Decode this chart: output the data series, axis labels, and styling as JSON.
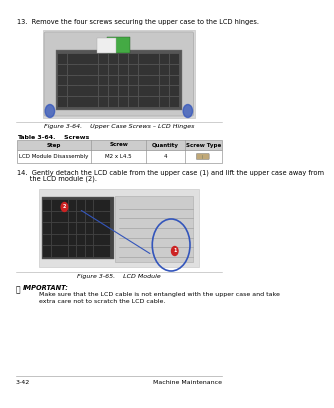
{
  "page_number": "3-42",
  "header_right": "Machine Maintenance",
  "step13_text": "13.  Remove the four screws securing the upper case to the LCD hinges.",
  "fig364_caption": "Figure 3-64.    Upper Case Screws – LCD Hinges",
  "table_title": "Table 3-64.    Screws",
  "table_headers": [
    "Step",
    "Screw",
    "Quantity",
    "Screw Type"
  ],
  "table_row": [
    "LCD Module Disassembly",
    "M2 x L4.5",
    "4",
    ""
  ],
  "step14_line1": "14.  Gently detach the LCD cable from the upper case (1) and lift the upper case away from",
  "step14_line2": "      the LCD module (2).",
  "fig365_caption": "Figure 3-65.    LCD Module",
  "important_bullet": "⬧",
  "important_label": "IMPORTANT:",
  "important_text1": "Make sure that the LCD cable is not entangled with the upper case and take",
  "important_text2": "extra care not to scratch the LCD cable.",
  "bg_color": "#ffffff",
  "text_color": "#000000",
  "gray_text": "#555555",
  "table_header_bg": "#cccccc",
  "table_border_color": "#999999",
  "footer_line_color": "#aaaaaa",
  "fig_line_color": "#aaaaaa",
  "img_border_color": "#cccccc",
  "img_bg_color": "#e8e8e8",
  "blue_circle_color": "#3355bb",
  "red_circle_color": "#cc2222"
}
